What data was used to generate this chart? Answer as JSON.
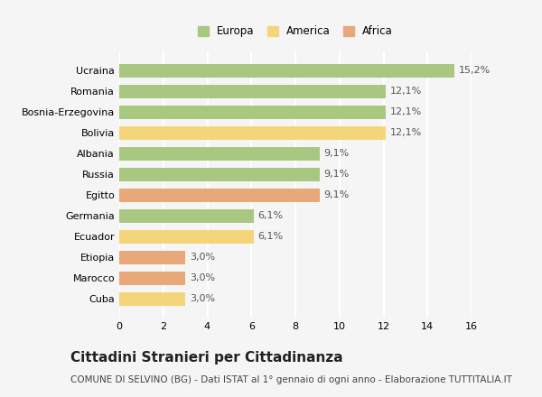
{
  "categories": [
    "Ucraina",
    "Romania",
    "Bosnia-Erzegovina",
    "Bolivia",
    "Albania",
    "Russia",
    "Egitto",
    "Germania",
    "Ecuador",
    "Etiopia",
    "Marocco",
    "Cuba"
  ],
  "values": [
    15.2,
    12.1,
    12.1,
    12.1,
    9.1,
    9.1,
    9.1,
    6.1,
    6.1,
    3.0,
    3.0,
    3.0
  ],
  "labels": [
    "15,2%",
    "12,1%",
    "12,1%",
    "12,1%",
    "9,1%",
    "9,1%",
    "9,1%",
    "6,1%",
    "6,1%",
    "3,0%",
    "3,0%",
    "3,0%"
  ],
  "continent": [
    "Europa",
    "Europa",
    "Europa",
    "America",
    "Europa",
    "Europa",
    "Africa",
    "Europa",
    "America",
    "Africa",
    "Africa",
    "America"
  ],
  "colors": {
    "Europa": "#a8c882",
    "America": "#f5d57a",
    "Africa": "#e8a87a"
  },
  "legend_labels": [
    "Europa",
    "America",
    "Africa"
  ],
  "xlim": [
    0,
    16
  ],
  "xticks": [
    0,
    2,
    4,
    6,
    8,
    10,
    12,
    14,
    16
  ],
  "title": "Cittadini Stranieri per Cittadinanza",
  "subtitle": "COMUNE DI SELVINO (BG) - Dati ISTAT al 1° gennaio di ogni anno - Elaborazione TUTTITALIA.IT",
  "background_color": "#f5f5f5",
  "grid_color": "#ffffff",
  "bar_height": 0.65,
  "label_fontsize": 8,
  "tick_fontsize": 8,
  "title_fontsize": 11,
  "subtitle_fontsize": 7.5
}
